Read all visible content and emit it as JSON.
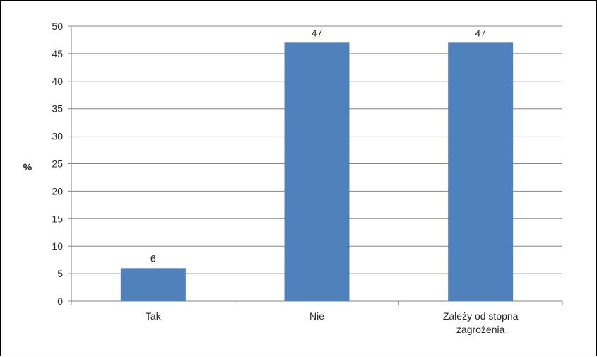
{
  "chart_data": {
    "type": "bar",
    "categories": [
      "Tak",
      "Nie",
      "Zależy od stopna zagrożenia"
    ],
    "category_lines": [
      [
        "Tak"
      ],
      [
        "Nie"
      ],
      [
        "Zależy od stopna",
        "zagrożenia"
      ]
    ],
    "values": [
      6,
      47,
      47
    ],
    "data_labels": [
      "6",
      "47",
      "47"
    ],
    "title": "",
    "xlabel": "",
    "ylabel": "%",
    "ylim": [
      0,
      50
    ],
    "yticks": [
      0,
      5,
      10,
      15,
      20,
      25,
      30,
      35,
      40,
      45,
      50
    ],
    "grid": true,
    "legend": "none",
    "colors": {
      "bar": "#4f81bd",
      "grid": "#868686",
      "axis": "#868686",
      "text": "#262626"
    }
  }
}
